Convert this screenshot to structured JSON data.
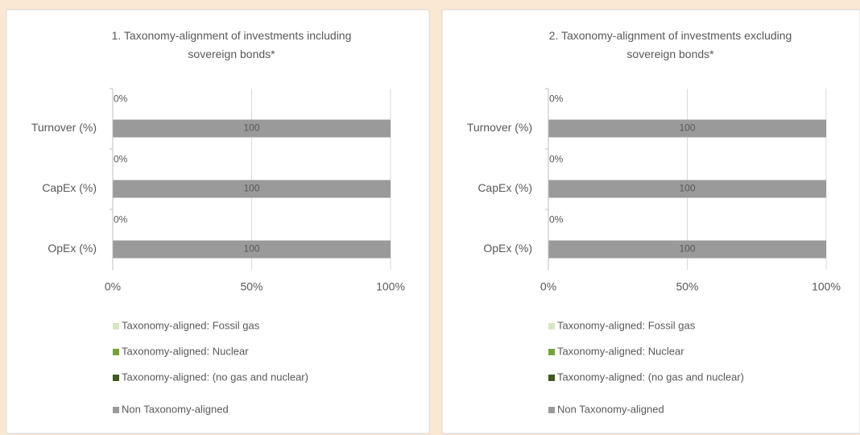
{
  "chart_data": [
    {
      "type": "bar",
      "orientation": "horizontal",
      "stacked": true,
      "title": "1. Taxonomy-alignment of investments including sovereign bonds*",
      "categories": [
        "Turnover (%)",
        "CapEx (%)",
        "OpEx (%)"
      ],
      "series": [
        {
          "name": "Taxonomy-aligned: Fossil gas",
          "color": "#d6e6c0",
          "values": [
            0,
            0,
            0
          ]
        },
        {
          "name": "Taxonomy-aligned: Nuclear",
          "color": "#76a23a",
          "values": [
            0,
            0,
            0
          ]
        },
        {
          "name": "Taxonomy-aligned: (no gas and nuclear)",
          "color": "#3e5a1f",
          "values": [
            0,
            0,
            0
          ],
          "value_labels": [
            "0%",
            "0%",
            "0%"
          ]
        },
        {
          "name": "Non Taxonomy-aligned",
          "color": "#9a9a9a",
          "values": [
            100,
            100,
            100
          ]
        }
      ],
      "xlim": [
        0,
        100
      ],
      "xticks": [
        {
          "value": 0,
          "label": "0%"
        },
        {
          "value": 50,
          "label": "50%"
        },
        {
          "value": 100,
          "label": "100%"
        }
      ],
      "grid": true,
      "legend": "bottom"
    },
    {
      "type": "bar",
      "orientation": "horizontal",
      "stacked": true,
      "title": "2. Taxonomy-alignment of investments excluding sovereign bonds*",
      "categories": [
        "Turnover (%)",
        "CapEx (%)",
        "OpEx (%)"
      ],
      "series": [
        {
          "name": "Taxonomy-aligned: Fossil gas",
          "color": "#d6e6c0",
          "values": [
            0,
            0,
            0
          ]
        },
        {
          "name": "Taxonomy-aligned: Nuclear",
          "color": "#76a23a",
          "values": [
            0,
            0,
            0
          ]
        },
        {
          "name": "Taxonomy-aligned: (no gas and nuclear)",
          "color": "#3e5a1f",
          "values": [
            0,
            0,
            0
          ],
          "value_labels": [
            "0%",
            "0%",
            "0%"
          ]
        },
        {
          "name": "Non Taxonomy-aligned",
          "color": "#9a9a9a",
          "values": [
            100,
            100,
            100
          ]
        }
      ],
      "xlim": [
        0,
        100
      ],
      "xticks": [
        {
          "value": 0,
          "label": "0%"
        },
        {
          "value": 50,
          "label": "50%"
        },
        {
          "value": 100,
          "label": "100%"
        }
      ],
      "grid": true,
      "legend": "bottom"
    }
  ]
}
